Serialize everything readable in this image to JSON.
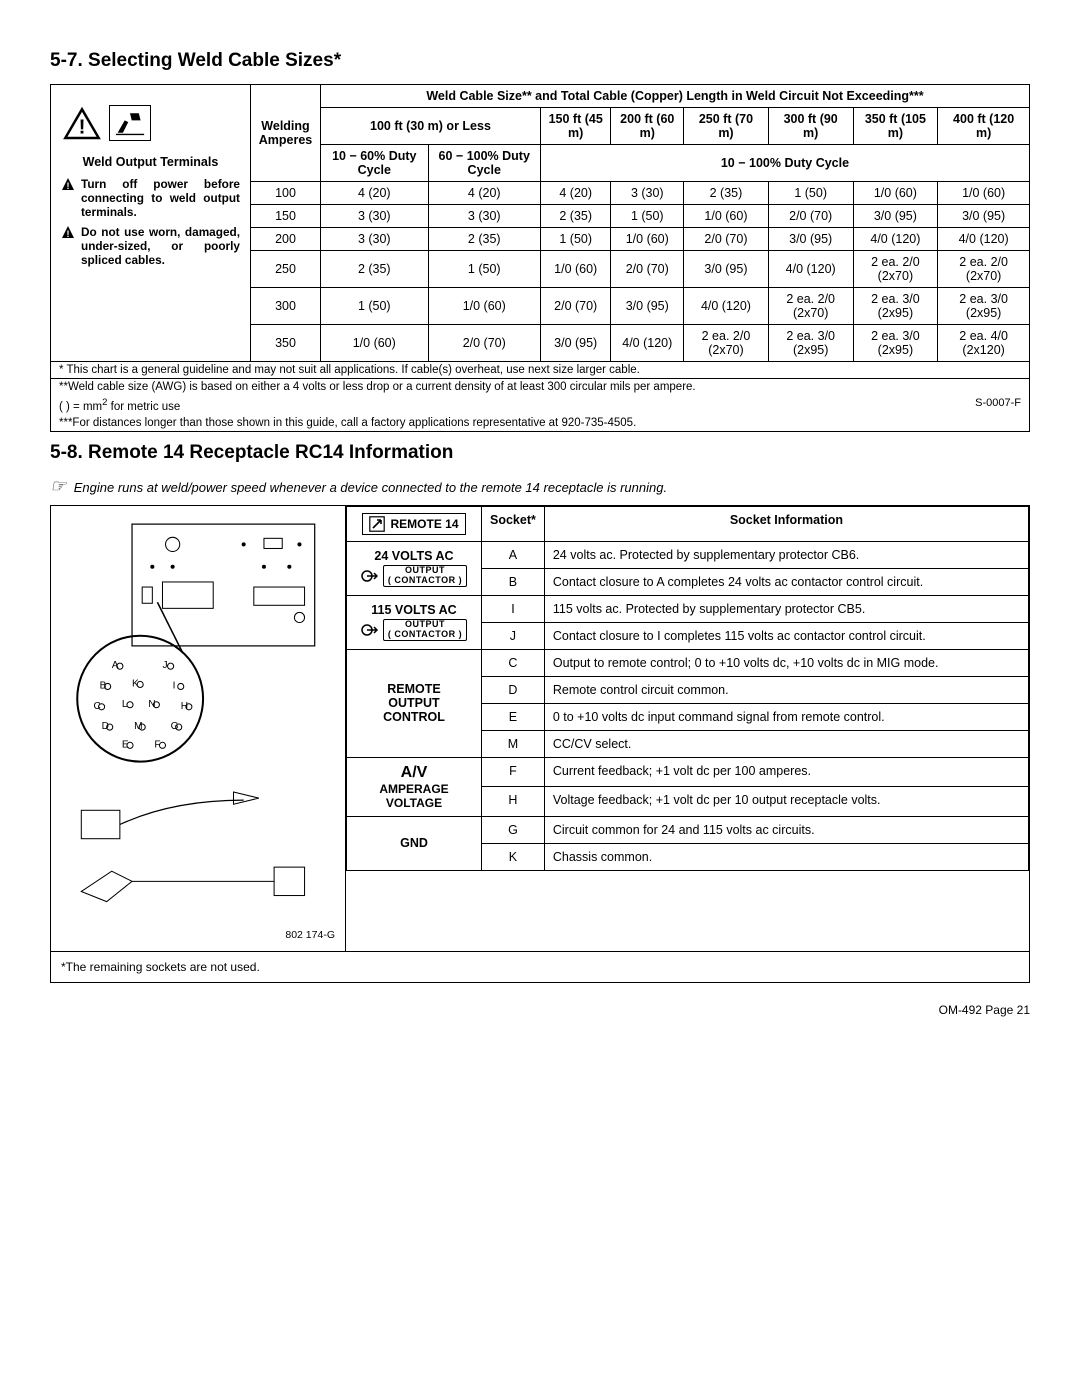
{
  "sec57": {
    "heading": "5-7. Selecting Weld Cable Sizes*",
    "left": {
      "terminals_caption": "Weld Output Terminals",
      "warn1": "Turn off power before connecting to weld output terminals.",
      "warn2": "Do not use worn, damaged, under-sized, or poorly spliced cables."
    },
    "header": {
      "span_title": "Weld Cable Size** and Total Cable (Copper) Length in Weld Circuit Not Exceeding***",
      "col_amperes": "Welding Amperes",
      "col_100ft": "100 ft (30 m) or Less",
      "col_dc_low": "10 − 60% Duty Cycle",
      "col_dc_high": "60 − 100% Duty Cycle",
      "col_dc_100": "10 − 100% Duty Cycle",
      "dist_labels": [
        "150 ft (45 m)",
        "200 ft (60 m)",
        "250 ft (70 m)",
        "300 ft (90 m)",
        "350 ft (105 m)",
        "400 ft (120 m)"
      ]
    },
    "rows": [
      {
        "amp": "100",
        "low": "4 (20)",
        "high": "4 (20)",
        "d": [
          "4 (20)",
          "3 (30)",
          "2 (35)",
          "1 (50)",
          "1/0 (60)",
          "1/0 (60)"
        ]
      },
      {
        "amp": "150",
        "low": "3 (30)",
        "high": "3 (30)",
        "d": [
          "2 (35)",
          "1 (50)",
          "1/0 (60)",
          "2/0 (70)",
          "3/0 (95)",
          "3/0 (95)"
        ]
      },
      {
        "amp": "200",
        "low": "3 (30)",
        "high": "2 (35)",
        "d": [
          "1 (50)",
          "1/0 (60)",
          "2/0 (70)",
          "3/0 (95)",
          "4/0 (120)",
          "4/0 (120)"
        ]
      },
      {
        "amp": "250",
        "low": "2 (35)",
        "high": "1 (50)",
        "d": [
          "1/0 (60)",
          "2/0 (70)",
          "3/0 (95)",
          "4/0 (120)",
          "2 ea. 2/0 (2x70)",
          "2 ea. 2/0 (2x70)"
        ]
      },
      {
        "amp": "300",
        "low": "1 (50)",
        "high": "1/0 (60)",
        "d": [
          "2/0 (70)",
          "3/0 (95)",
          "4/0 (120)",
          "2 ea. 2/0 (2x70)",
          "2 ea. 3/0 (2x95)",
          "2 ea. 3/0 (2x95)"
        ]
      },
      {
        "amp": "350",
        "low": "1/0 (60)",
        "high": "2/0 (70)",
        "d": [
          "3/0 (95)",
          "4/0 (120)",
          "2 ea. 2/0 (2x70)",
          "2 ea. 3/0 (2x95)",
          "2 ea. 3/0 (2x95)",
          "2 ea. 4/0 (2x120)"
        ]
      }
    ],
    "footnotes": {
      "f1": "* This chart is a general guideline and may not suit all applications. If cable(s) overheat, use next size larger cable.",
      "f2": "**Weld cable size (AWG) is based on either a 4 volts or less drop or a current density of at least 300 circular mils per ampere.",
      "f3_pre": "( ) = mm",
      "f3_sup": "2",
      "f3_post": " for metric use",
      "f4": "***For distances longer than those shown in this guide, call a factory applications representative at 920-735-4505.",
      "doc_ref": "S-0007-F"
    }
  },
  "sec58": {
    "heading": "5-8. Remote 14 Receptacle RC14 Information",
    "note": "Engine runs at weld/power speed whenever a device connected to the remote 14 receptacle is running.",
    "remote_badge": "REMOTE 14",
    "header_socket": "Socket*",
    "header_info": "Socket Information",
    "groups": [
      {
        "label": "24 VOLTS AC",
        "badge": "contactor",
        "rows": [
          {
            "s": "A",
            "i": "24 volts ac. Protected by supplementary protector CB6."
          },
          {
            "s": "B",
            "i": "Contact closure to A completes 24 volts ac contactor control circuit."
          }
        ]
      },
      {
        "label": "115 VOLTS AC",
        "badge": "contactor",
        "rows": [
          {
            "s": "I",
            "i": "115 volts ac. Protected by supplementary protector CB5."
          },
          {
            "s": "J",
            "i": "Contact closure to I completes 115 volts ac contactor control circuit."
          }
        ]
      },
      {
        "label": "REMOTE OUTPUT CONTROL",
        "rows": [
          {
            "s": "C",
            "i": "Output to remote control; 0 to +10 volts dc, +10 volts dc in MIG mode."
          },
          {
            "s": "D",
            "i": "Remote control circuit common."
          },
          {
            "s": "E",
            "i": "0 to +10 volts dc input command signal from remote control."
          },
          {
            "s": "M",
            "i": "CC/CV select."
          }
        ]
      },
      {
        "label": "A/V AMPERAGE VOLTAGE",
        "av": true,
        "rows": [
          {
            "s": "F",
            "i": "Current feedback; +1 volt dc per 100 amperes."
          },
          {
            "s": "H",
            "i": "Voltage feedback; +1 volt dc per 10 output receptacle volts."
          }
        ]
      },
      {
        "label": "GND",
        "rows": [
          {
            "s": "G",
            "i": "Circuit common for 24 and 115 volts ac circuits."
          },
          {
            "s": "K",
            "i": "Chassis common."
          }
        ]
      }
    ],
    "diagram_ref": "802 174-G",
    "footnote": "*The remaining sockets are not used."
  },
  "page_footer": "OM-492 Page 21"
}
